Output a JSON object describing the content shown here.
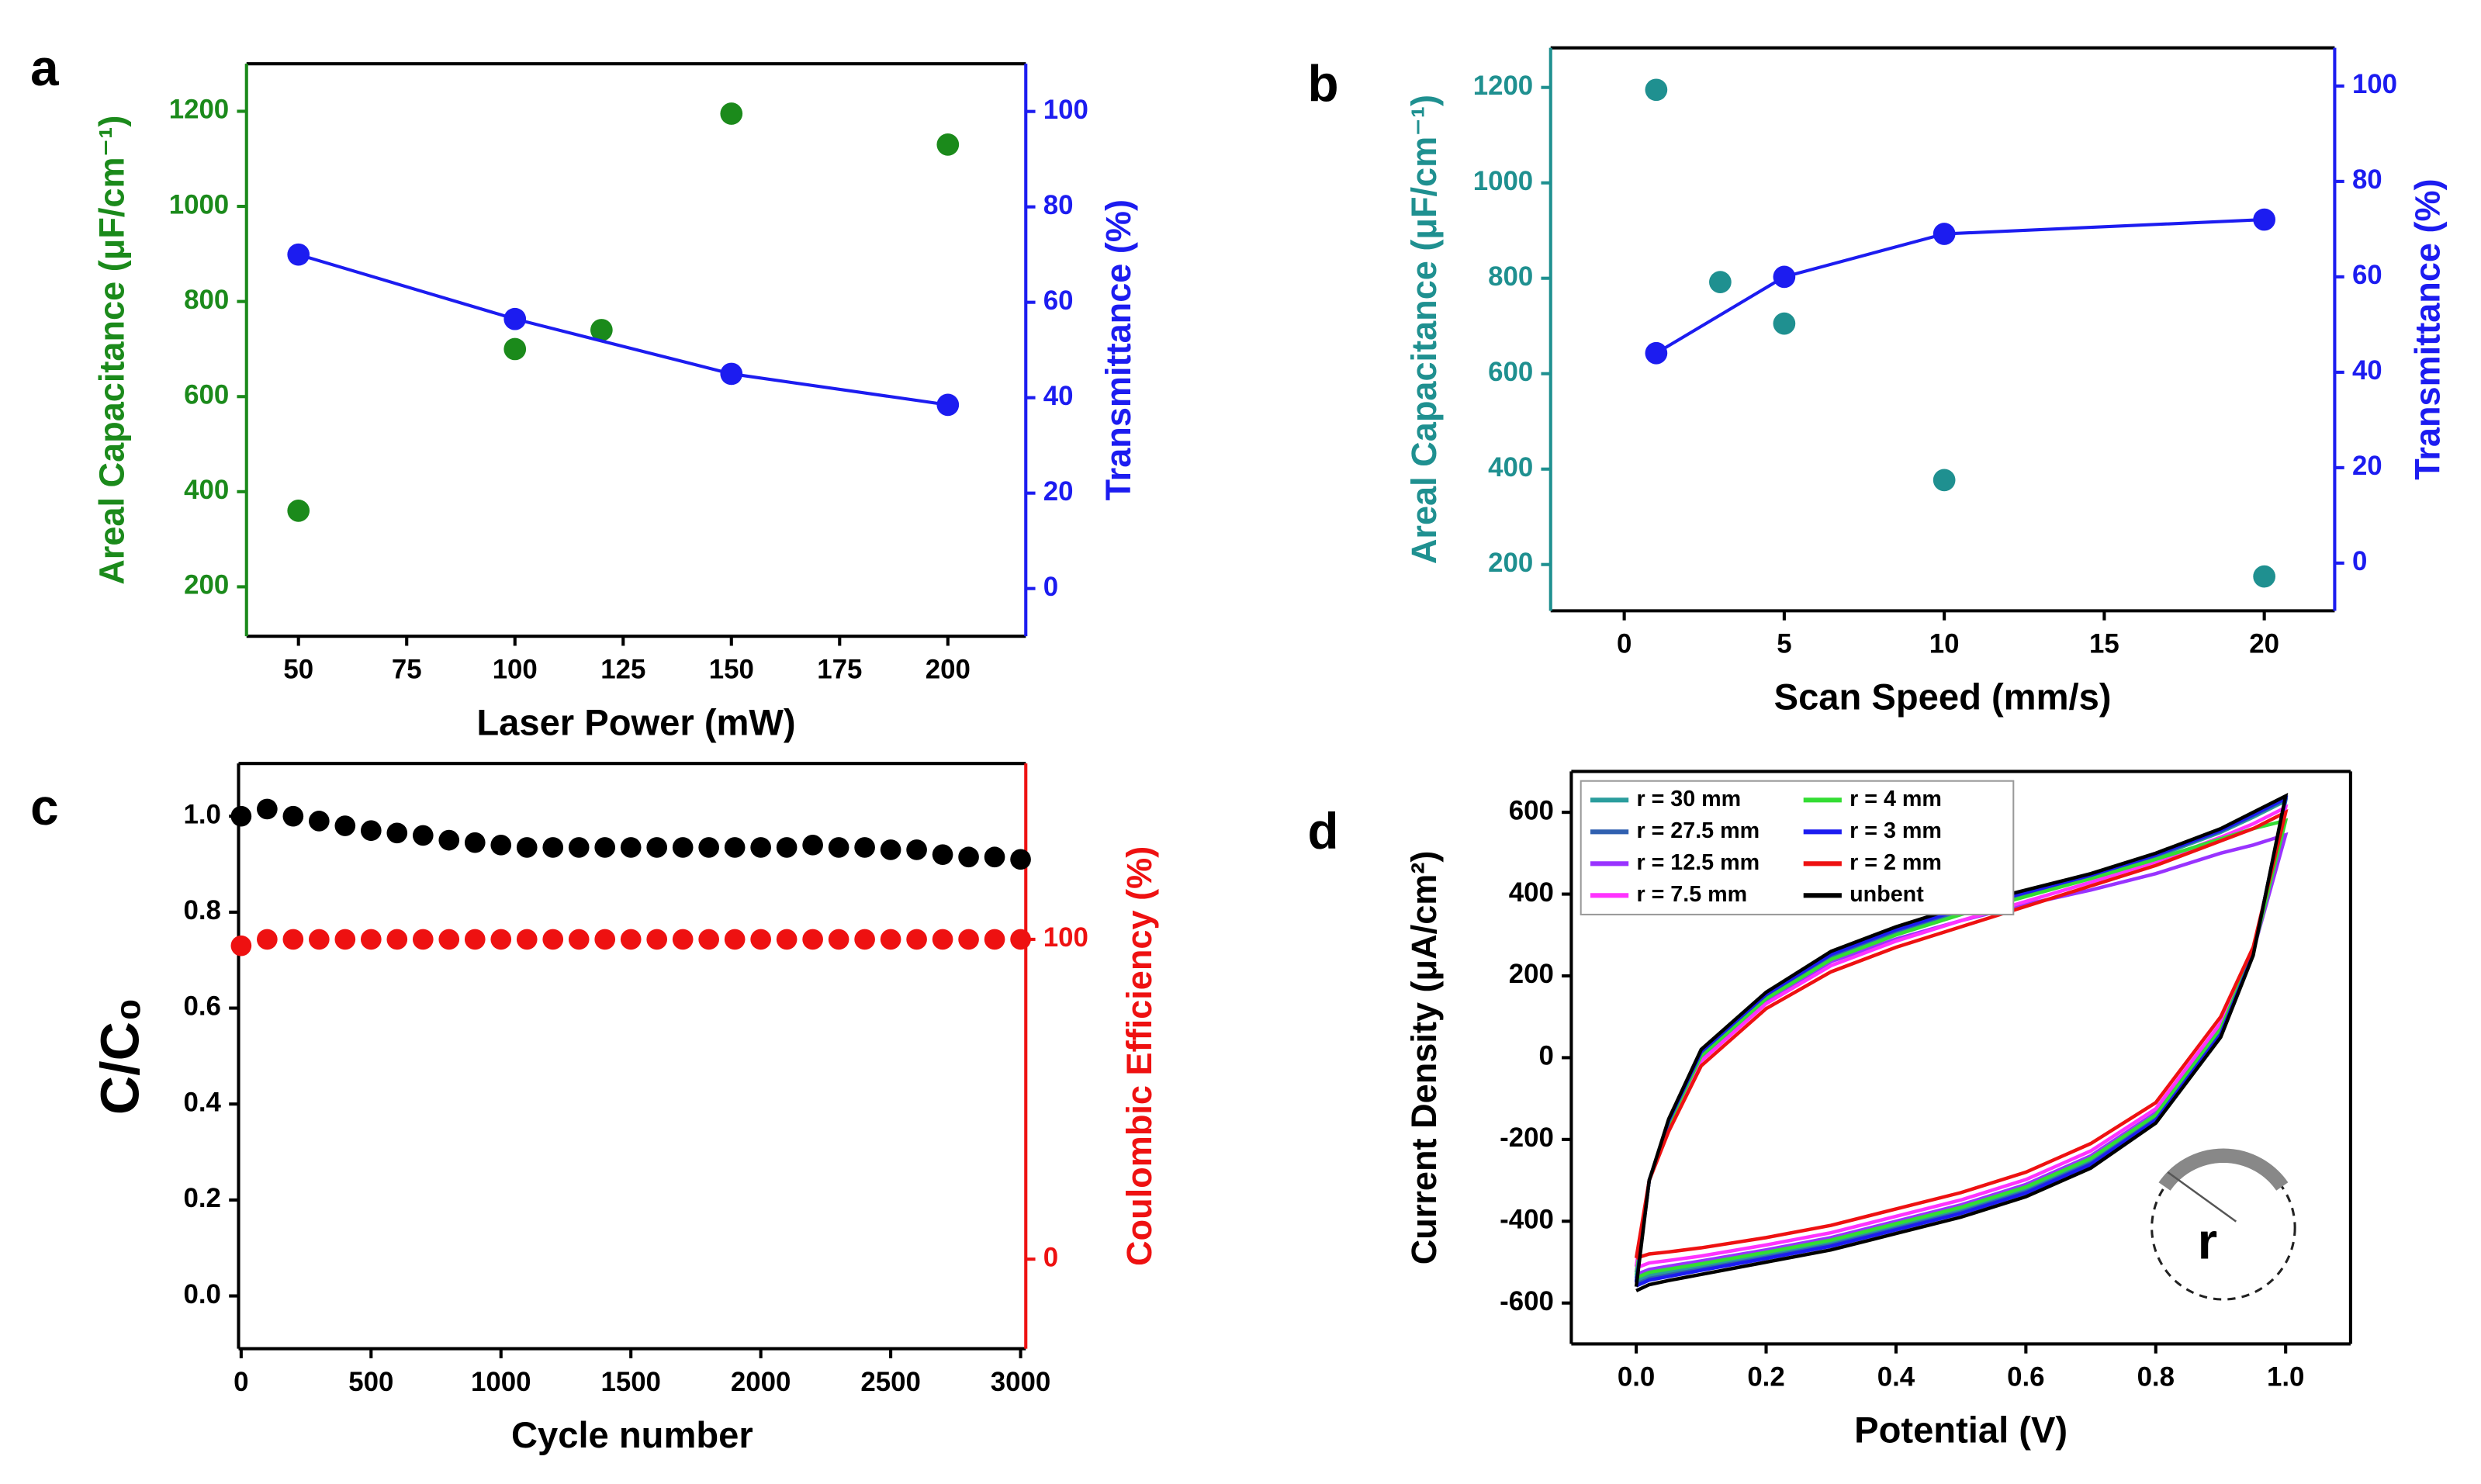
{
  "chart_data": [
    {
      "type": "scatter",
      "panel_label": "a",
      "xlabel": "Laser Power (mW)",
      "ylabel": "Areal Capacitance (μF/cm⁻¹)",
      "y2label": "Transmittance (%)",
      "xlim": [
        38,
        218
      ],
      "xticks": [
        50,
        75,
        100,
        125,
        150,
        175,
        200
      ],
      "ylim": [
        96,
        1300
      ],
      "yticks": [
        200,
        400,
        600,
        800,
        1000,
        1200
      ],
      "y2lim": [
        -10,
        110
      ],
      "y2ticks": [
        0,
        20,
        40,
        60,
        80,
        100
      ],
      "series": [
        {
          "color": "#1b8a1b",
          "mode": "markers",
          "x": [
            50,
            100,
            120,
            150,
            200
          ],
          "values": [
            360,
            700,
            740,
            1195,
            1130
          ]
        },
        {
          "color": "#1c1cf0",
          "mode": "lines+markers",
          "axis": "y2",
          "x": [
            50,
            100,
            150,
            200
          ],
          "values": [
            70,
            56.5,
            45,
            38.5
          ]
        }
      ]
    },
    {
      "type": "scatter",
      "panel_label": "b",
      "xlabel": "Scan Speed (mm/s)",
      "ylabel": "Areal Capacitance (μF/cm⁻¹)",
      "y2label": "Transmittance (%)",
      "xlim": [
        -2.3,
        22.2
      ],
      "xticks": [
        0,
        5,
        10,
        15,
        20
      ],
      "ylim": [
        103,
        1283
      ],
      "yticks": [
        200,
        400,
        600,
        800,
        1000,
        1200
      ],
      "y2lim": [
        -10,
        108
      ],
      "y2ticks": [
        0,
        20,
        40,
        60,
        80,
        100
      ],
      "series": [
        {
          "color": "#1f9090",
          "mode": "markers",
          "x": [
            1,
            3,
            5,
            10,
            20
          ],
          "values": [
            1195,
            792,
            705,
            377,
            175
          ]
        },
        {
          "color": "#1c1cf0",
          "mode": "lines+markers",
          "axis": "y2",
          "x": [
            1,
            5,
            10,
            20
          ],
          "values": [
            44,
            60,
            69,
            72
          ]
        }
      ]
    },
    {
      "type": "scatter",
      "panel_label": "c",
      "xlabel": "Cycle number",
      "ylabel": "C/C₀",
      "y2label": "Coulombic Efficiency (%)",
      "xlim": [
        -10,
        3020
      ],
      "xticks": [
        0,
        500,
        1000,
        1500,
        2000,
        2500,
        3000
      ],
      "ylim": [
        -0.11,
        1.11
      ],
      "yticks": [
        {
          "value": 0,
          "label": "0.0"
        },
        0.2,
        0.4,
        0.6,
        0.8,
        {
          "value": 1,
          "label": "1.0"
        }
      ],
      "y2lim": [
        -28,
        155
      ],
      "y2ticks": [
        0,
        100
      ],
      "x": [
        0,
        100,
        200,
        300,
        400,
        500,
        600,
        700,
        800,
        900,
        1000,
        1100,
        1200,
        1300,
        1400,
        1500,
        1600,
        1700,
        1800,
        1900,
        2000,
        2100,
        2200,
        2300,
        2400,
        2500,
        2600,
        2700,
        2800,
        2900,
        3000
      ],
      "series": [
        {
          "color": "#000000",
          "mode": "markers",
          "values": [
            1.0,
            1.015,
            1.0,
            0.99,
            0.98,
            0.97,
            0.965,
            0.96,
            0.95,
            0.945,
            0.94,
            0.935,
            0.935,
            0.935,
            0.935,
            0.935,
            0.935,
            0.935,
            0.935,
            0.935,
            0.935,
            0.935,
            0.94,
            0.935,
            0.935,
            0.93,
            0.93,
            0.92,
            0.915,
            0.915,
            0.91
          ]
        },
        {
          "color": "#ee1111",
          "mode": "markers",
          "axis": "y2",
          "values": [
            98,
            100,
            100,
            100,
            100,
            100,
            100,
            100,
            100,
            100,
            100,
            100,
            100,
            100,
            100,
            100,
            100,
            100,
            100,
            100,
            100,
            100,
            100,
            100,
            100,
            100,
            100,
            100,
            100,
            100,
            100
          ]
        }
      ]
    },
    {
      "type": "line",
      "panel_label": "d",
      "xlabel": "Potential (V)",
      "ylabel": "Current Density (μA/cm²)",
      "inset_label": "r",
      "legend": "upper left",
      "xlim": [
        -0.1,
        1.1
      ],
      "xticks": [
        {
          "value": 0,
          "label": "0.0"
        },
        0.2,
        0.4,
        0.6,
        0.8,
        {
          "value": 1,
          "label": "1.0"
        }
      ],
      "ylim": [
        -700,
        700
      ],
      "yticks": [
        -600,
        -400,
        -200,
        0,
        200,
        400,
        600
      ],
      "x": [
        0,
        0.02,
        0.05,
        0.1,
        0.2,
        0.3,
        0.4,
        0.5,
        0.6,
        0.7,
        0.8,
        0.9,
        0.95,
        1.0,
        0.95,
        0.9,
        0.8,
        0.7,
        0.6,
        0.5,
        0.4,
        0.3,
        0.2,
        0.1,
        0.05,
        0.02,
        0
      ],
      "series": [
        {
          "name": "r = 30 mm",
          "color": "#2a9d9d",
          "values": [
            -539,
            -300,
            -159,
            8,
            148,
            245,
            305,
            355,
            398,
            441,
            491,
            551,
            588,
            628,
            256,
            65,
            -145,
            -252,
            -322,
            -372,
            -412,
            -452,
            -482,
            -510,
            -524,
            -532,
            -546
          ]
        },
        {
          "name": "r = 27.5 mm",
          "color": "#3060b0",
          "values": [
            -546,
            -300,
            -156,
            12,
            152,
            250,
            310,
            360,
            402,
            444,
            494,
            554,
            592,
            632,
            254,
            60,
            -150,
            -258,
            -328,
            -378,
            -418,
            -458,
            -488,
            -517,
            -531,
            -540,
            -554
          ]
        },
        {
          "name": "r = 12.5 mm",
          "color": "#9933ff",
          "values": [
            -525,
            -300,
            -165,
            0,
            140,
            235,
            290,
            335,
            375,
            410,
            450,
            500,
            520,
            545,
            260,
            75,
            -135,
            -240,
            -310,
            -360,
            -400,
            -440,
            -470,
            -497,
            -510,
            -518,
            -530
          ]
        },
        {
          "name": "r = 7.5 mm",
          "color": "#ff33ff",
          "values": [
            -511,
            -300,
            -171,
            -8,
            132,
            225,
            285,
            335,
            382,
            429,
            479,
            539,
            572,
            612,
            264,
            85,
            -125,
            -228,
            -298,
            -348,
            -388,
            -428,
            -458,
            -485,
            -496,
            -502,
            -514
          ]
        },
        {
          "name": "r = 4 mm",
          "color": "#33dd33",
          "values": [
            -532,
            -300,
            -162,
            4,
            144,
            240,
            300,
            350,
            394,
            438,
            485,
            535,
            560,
            580,
            258,
            70,
            -140,
            -246,
            -316,
            -366,
            -406,
            -446,
            -476,
            -504,
            -517,
            -525,
            -538
          ]
        },
        {
          "name": "r = 3 mm",
          "color": "#1c1cf0",
          "values": [
            -550,
            -300,
            -155,
            14,
            154,
            253,
            313,
            363,
            404,
            446,
            496,
            556,
            594,
            634,
            253,
            58,
            -153,
            -261,
            -331,
            -381,
            -421,
            -461,
            -491,
            -520,
            -535,
            -544,
            -558
          ]
        },
        {
          "name": "r = 2 mm",
          "color": "#ee1111",
          "values": [
            -490,
            -300,
            -180,
            -20,
            120,
            210,
            270,
            320,
            370,
            420,
            470,
            530,
            560,
            600,
            270,
            100,
            -110,
            -210,
            -280,
            -330,
            -370,
            -410,
            -440,
            -465,
            -475,
            -480,
            -490
          ]
        },
        {
          "name": "unbent",
          "color": "#000000",
          "values": [
            -560,
            -300,
            -150,
            20,
            160,
            260,
            320,
            370,
            410,
            450,
            500,
            560,
            600,
            640,
            250,
            50,
            -160,
            -270,
            -340,
            -390,
            -430,
            -470,
            -500,
            -530,
            -545,
            -555,
            -570
          ]
        }
      ]
    }
  ]
}
